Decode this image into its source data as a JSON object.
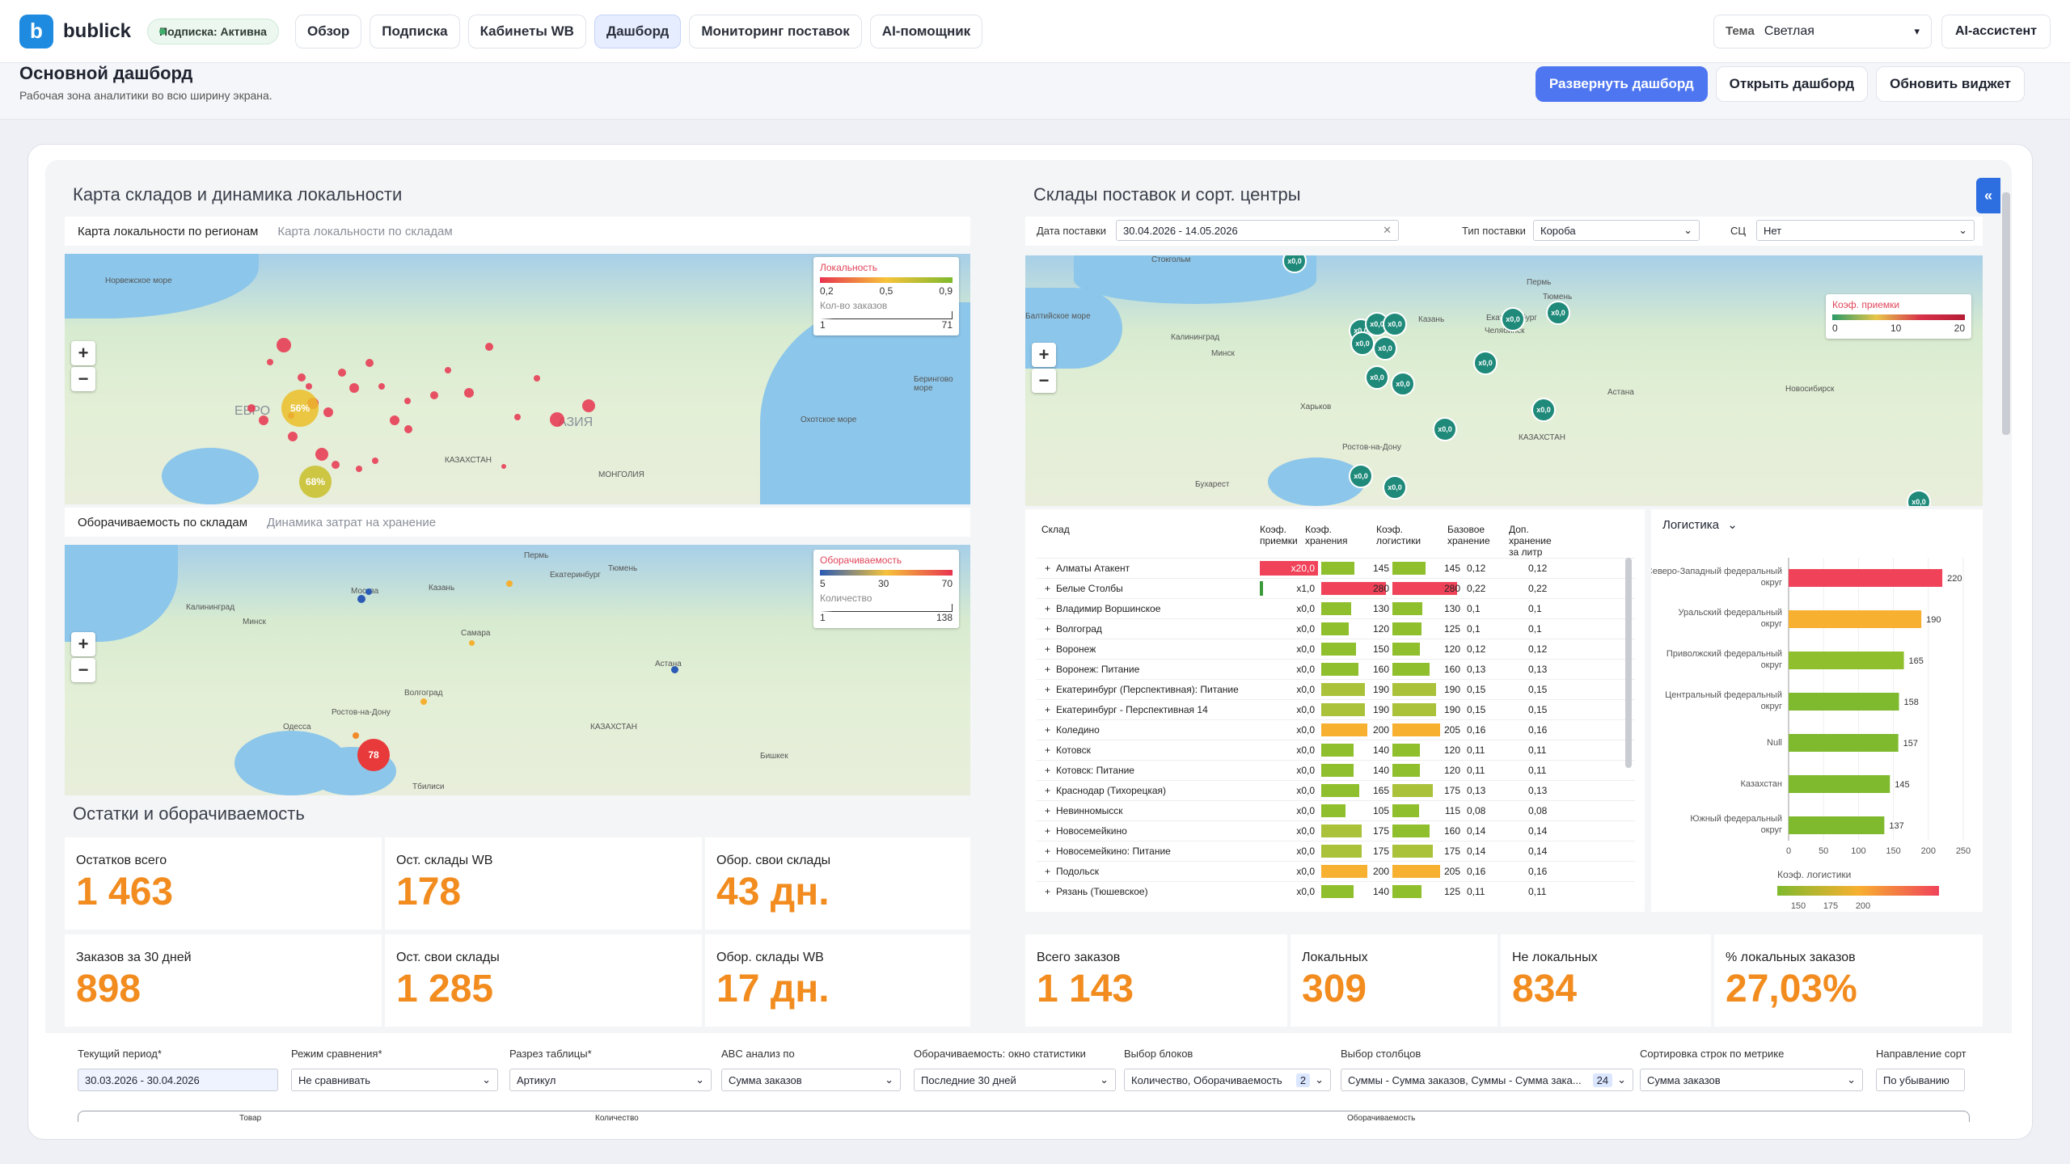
{
  "app": {
    "brand": "bublick",
    "logo_letter": "b",
    "subscription_label": "Подписка:",
    "subscription_status": "Активна"
  },
  "nav": [
    "Обзор",
    "Подписка",
    "Кабинеты WB",
    "Дашборд",
    "Мониторинг поставок",
    "AI-помощник"
  ],
  "theme": {
    "label": "Тема",
    "value": "Светлая"
  },
  "ai_button": "AI-ассистент",
  "page": {
    "title": "Основной дашборд",
    "subtitle": "Рабочая зона аналитики во всю ширину экрана."
  },
  "actions": {
    "expand": "Развернуть дашборд",
    "open": "Открыть дашборд",
    "refresh": "Обновить виджет"
  },
  "left": {
    "title": "Карта складов и динамика локальности",
    "map1_tabs": [
      "Карта локальности по регионам",
      "Карта локальности по складам"
    ],
    "map1_legend": {
      "title": "Локальность",
      "ticks": [
        "0,2",
        "0,5",
        "0,9"
      ],
      "size_title": "Кол-во заказов",
      "size_min": "1",
      "size_max": "71"
    },
    "map1_labels": {
      "dot1": "56%",
      "dot2": "68%",
      "sea1": "Норвежское море",
      "region1": "ЕВРО",
      "region2": "АЗИЯ",
      "sea2": "Охотское море",
      "sea3": "Берингово море",
      "country1": "КАЗАХСТАН",
      "country2": "МОНГОЛИЯ"
    },
    "map2_tabs": [
      "Оборачиваемость по складам",
      "Динамика затрат на хранение"
    ],
    "map2_legend": {
      "title": "Оборачиваемость",
      "ticks": [
        "5",
        "30",
        "70"
      ],
      "size_title": "Количество",
      "size_min": "1",
      "size_max": "138"
    },
    "map2_labels": {
      "dot": "78",
      "c1": "Москва",
      "c2": "Калининград",
      "c3": "Самара",
      "c4": "Волгоград",
      "c5": "Астана",
      "c6": "Ростов-на-Дону",
      "c7": "Одесса",
      "c8": "Пермь",
      "c9": "Екатеринбург",
      "c10": "Тюмень",
      "c11": "Казань",
      "c12": "Минск",
      "c13": "КАЗАХСТАН",
      "c14": "Тбилиси",
      "c15": "Бишкек"
    }
  },
  "stock": {
    "title": "Остатки и оборачиваемость",
    "kpis": [
      {
        "label": "Остатков всего",
        "value": "1 463"
      },
      {
        "label": "Ост. склады WB",
        "value": "178"
      },
      {
        "label": "Обор. свои склады",
        "value": "43 дн."
      },
      {
        "label": "Заказов за 30 дней",
        "value": "898"
      },
      {
        "label": "Ост. свои склады",
        "value": "1 285"
      },
      {
        "label": "Обор. склады WB",
        "value": "17 дн."
      }
    ]
  },
  "right": {
    "title": "Склады поставок и сорт. центры",
    "date_label": "Дата поставки",
    "date_value": "30.04.2026 - 14.05.2026",
    "type_label": "Тип поставки",
    "type_value": "Короба",
    "sc_label": "СЦ",
    "sc_value": "Нет",
    "map_legend": {
      "title": "Коэф. приемки",
      "ticks": [
        "0",
        "10",
        "20"
      ]
    },
    "map_marker": "x0,0",
    "map_labels": {
      "c1": "Стокгольм",
      "c2": "Калининград",
      "c3": "Минск",
      "c4": "Казань",
      "c5": "Екатеринбург",
      "c6": "Тюмень",
      "c7": "Челябинск",
      "c8": "Астана",
      "c9": "КАЗАХСТАН",
      "c10": "Ростов-на-Дону",
      "c11": "Бухарест",
      "c12": "Новосибирск",
      "c13": "Пермь",
      "c14": "Харьков",
      "c15": "Балтийское море"
    },
    "table": {
      "headers": [
        "Склад",
        "Коэф. приемки",
        "Коэф. хранения",
        "Коэф. логистики",
        "Базовое хранение",
        "Доп. хранение за литр"
      ],
      "rows": [
        {
          "name": "Алматы Атакент",
          "acc": "x20,0",
          "store": "145",
          "log": "145",
          "base": "0,12",
          "extra": "0,12"
        },
        {
          "name": "Белые Столбы",
          "acc": "x1,0",
          "store": "280",
          "log": "280",
          "base": "0,22",
          "extra": "0,22"
        },
        {
          "name": "Владимир Воршинское",
          "acc": "x0,0",
          "store": "130",
          "log": "130",
          "base": "0,1",
          "extra": "0,1"
        },
        {
          "name": "Волгоград",
          "acc": "x0,0",
          "store": "120",
          "log": "125",
          "base": "0,1",
          "extra": "0,1"
        },
        {
          "name": "Воронеж",
          "acc": "x0,0",
          "store": "150",
          "log": "120",
          "base": "0,12",
          "extra": "0,12"
        },
        {
          "name": "Воронеж: Питание",
          "acc": "x0,0",
          "store": "160",
          "log": "160",
          "base": "0,13",
          "extra": "0,13"
        },
        {
          "name": "Екатеринбург (Перспективная): Питание",
          "acc": "x0,0",
          "store": "190",
          "log": "190",
          "base": "0,15",
          "extra": "0,15"
        },
        {
          "name": "Екатеринбург - Перспективная 14",
          "acc": "x0,0",
          "store": "190",
          "log": "190",
          "base": "0,15",
          "extra": "0,15"
        },
        {
          "name": "Коледино",
          "acc": "x0,0",
          "store": "200",
          "log": "205",
          "base": "0,16",
          "extra": "0,16"
        },
        {
          "name": "Котовск",
          "acc": "x0,0",
          "store": "140",
          "log": "120",
          "base": "0,11",
          "extra": "0,11"
        },
        {
          "name": "Котовск: Питание",
          "acc": "x0,0",
          "store": "140",
          "log": "120",
          "base": "0,11",
          "extra": "0,11"
        },
        {
          "name": "Краснодар (Тихорецкая)",
          "acc": "x0,0",
          "store": "165",
          "log": "175",
          "base": "0,13",
          "extra": "0,13"
        },
        {
          "name": "Невинномысск",
          "acc": "x0,0",
          "store": "105",
          "log": "115",
          "base": "0,08",
          "extra": "0,08"
        },
        {
          "name": "Новосемейкино",
          "acc": "x0,0",
          "store": "175",
          "log": "160",
          "base": "0,14",
          "extra": "0,14"
        },
        {
          "name": "Новосемейкино: Питание",
          "acc": "x0,0",
          "store": "175",
          "log": "175",
          "base": "0,14",
          "extra": "0,14"
        },
        {
          "name": "Подольск",
          "acc": "x0,0",
          "store": "200",
          "log": "205",
          "base": "0,16",
          "extra": "0,16"
        },
        {
          "name": "Рязань (Тюшевское)",
          "acc": "x0,0",
          "store": "140",
          "log": "125",
          "base": "0,11",
          "extra": "0,11"
        }
      ]
    },
    "logistics_label": "Логистика"
  },
  "chart_data": {
    "type": "bar",
    "categories": [
      "Северо-Западный федеральный округ",
      "Уральский федеральный округ",
      "Приволжский федеральный округ",
      "Центральный федеральный округ",
      "Null",
      "Казахстан",
      "Южный федеральный округ"
    ],
    "values": [
      220,
      190,
      165,
      158,
      157,
      145,
      137
    ],
    "colors": [
      "#f0435a",
      "#f7b030",
      "#8fbf2c",
      "#7fb92e",
      "#7fb92e",
      "#7fb92e",
      "#7fb92e"
    ],
    "xlim": [
      0,
      250
    ],
    "xticks": [
      "0",
      "50",
      "100",
      "150",
      "200",
      "250"
    ],
    "legend_title": "Коэф. логистики",
    "legend_ticks": [
      "150",
      "175",
      "200"
    ]
  },
  "orders": {
    "kpis": [
      {
        "label": "Всего заказов",
        "value": "1 143"
      },
      {
        "label": "Локальных",
        "value": "309"
      },
      {
        "label": "Не локальных",
        "value": "834"
      },
      {
        "label": "% локальных заказов",
        "value": "27,03%"
      }
    ]
  },
  "filters": [
    {
      "label": "Текущий период*",
      "value": "30.03.2026 - 30.04.2026"
    },
    {
      "label": "Режим сравнения*",
      "value": "Не сравнивать"
    },
    {
      "label": "Разрез таблицы*",
      "value": "Артикул"
    },
    {
      "label": "ABC анализ по",
      "value": "Сумма заказов"
    },
    {
      "label": "Оборачиваемость: окно статистики",
      "value": "Последние 30 дней"
    },
    {
      "label": "Выбор блоков",
      "value": "Количество, Оборачиваемость",
      "count": "2"
    },
    {
      "label": "Выбор столбцов",
      "value": "Суммы - Сумма заказов, Суммы - Сумма зака...",
      "count": "24"
    },
    {
      "label": "Сортировка строк по метрике",
      "value": "Сумма заказов"
    },
    {
      "label": "Направление сорт",
      "value": "По убыванию"
    }
  ],
  "table_bottom": {
    "h1": "Товар",
    "h2": "Количество",
    "h3": "Оборачиваемость"
  },
  "collapse_icon": "«"
}
